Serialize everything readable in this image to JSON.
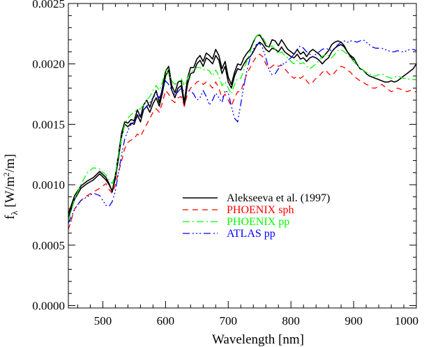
{
  "chart_data": {
    "type": "line",
    "xlabel": "Wavelength [nm]",
    "ylabel": {
      "main": "f",
      "sub": "λ",
      "unit_prefix": " [W/m",
      "unit_sup": "2",
      "unit_suffix": "/m]"
    },
    "xlim": [
      445,
      1000
    ],
    "ylim": [
      -2e-05,
      0.0025
    ],
    "xticks": [
      500,
      600,
      700,
      800,
      900,
      1000
    ],
    "yticks": [
      0.0,
      0.0005,
      0.001,
      0.0015,
      0.002,
      0.0025
    ],
    "ytick_labels": [
      "0.0000",
      "0.0005",
      "0.0010",
      "0.0015",
      "0.0020",
      "0.0025"
    ],
    "xtick_labels": [
      "500",
      "600",
      "700",
      "800",
      "900",
      "1000"
    ],
    "x_minor_step": 20,
    "y_minor_step": 0.0001,
    "grid": false,
    "legend_position": "center-right",
    "series": [
      {
        "name": "Alekseeva et al. (1997)",
        "color": "#000000",
        "dash": "solid",
        "x": [
          445,
          455,
          465,
          475,
          485,
          495,
          505,
          510,
          515,
          520,
          525,
          530,
          535,
          540,
          545,
          550,
          555,
          560,
          565,
          570,
          575,
          580,
          585,
          590,
          595,
          600,
          605,
          610,
          615,
          620,
          625,
          630,
          635,
          640,
          645,
          650,
          655,
          660,
          665,
          670,
          675,
          680,
          685,
          690,
          695,
          700,
          705,
          710,
          715,
          720,
          725,
          730,
          735,
          740,
          745,
          750,
          755,
          760,
          765,
          770,
          775,
          780,
          785,
          790,
          795,
          800,
          805,
          810,
          815,
          820,
          825,
          830,
          835,
          840,
          845,
          850,
          855,
          860,
          865,
          870,
          875,
          880,
          885,
          890,
          895,
          900,
          905,
          910,
          915,
          920,
          925,
          930,
          935,
          940,
          945,
          950,
          955,
          960,
          965,
          970,
          975,
          980,
          985,
          990,
          995,
          1000
        ],
        "y": [
          0.00073,
          0.00088,
          0.00097,
          0.00101,
          0.00104,
          0.00109,
          0.00104,
          0.001,
          0.00095,
          0.00105,
          0.00122,
          0.0014,
          0.0015,
          0.00148,
          0.00151,
          0.0015,
          0.00158,
          0.00152,
          0.00162,
          0.00165,
          0.0016,
          0.00167,
          0.00172,
          0.00165,
          0.00176,
          0.0019,
          0.00195,
          0.00178,
          0.00172,
          0.0018,
          0.00182,
          0.00165,
          0.00183,
          0.00192,
          0.00193,
          0.002,
          0.00203,
          0.00198,
          0.00205,
          0.00203,
          0.002,
          0.00207,
          0.00203,
          0.00192,
          0.00198,
          0.00185,
          0.0018,
          0.0019,
          0.00196,
          0.00195,
          0.002,
          0.00204,
          0.00206,
          0.0021,
          0.00215,
          0.00218,
          0.00216,
          0.00212,
          0.0021,
          0.00213,
          0.00212,
          0.0021,
          0.00214,
          0.0021,
          0.00208,
          0.00206,
          0.00205,
          0.00208,
          0.00204,
          0.00205,
          0.00202,
          0.00205,
          0.00206,
          0.00205,
          0.00203,
          0.002,
          0.00203,
          0.00205,
          0.0021,
          0.00213,
          0.00215,
          0.00216,
          0.00214,
          0.0021,
          0.00207,
          0.00205,
          0.002,
          0.00196,
          0.00195,
          0.00192,
          0.0019,
          0.00189,
          0.00188,
          0.00187,
          0.00186,
          0.00185,
          0.00185,
          0.00186,
          0.00185,
          0.00186,
          0.00188,
          0.0019,
          0.00192,
          0.00194,
          0.00196,
          0.002
        ]
      },
      {
        "name": "",
        "color": "#000000",
        "dash": "solid",
        "x": [
          445,
          455,
          465,
          475,
          485,
          495,
          505,
          510,
          515,
          520,
          525,
          530,
          535,
          540,
          545,
          550,
          555,
          560,
          565,
          570,
          575,
          580,
          585,
          590,
          595,
          600,
          605,
          610,
          615,
          620,
          625,
          630,
          635,
          640,
          645,
          650,
          655,
          660,
          665,
          670,
          675,
          680,
          685,
          690,
          695,
          700,
          705,
          710,
          715,
          720,
          725,
          730,
          735,
          740,
          745,
          750,
          755,
          760,
          765,
          770,
          775,
          780,
          785,
          790,
          795,
          800,
          805,
          810,
          815,
          820,
          825,
          830,
          835,
          840,
          845,
          850,
          855,
          860,
          865,
          870,
          875,
          880,
          885,
          890,
          895,
          900
        ],
        "y": [
          0.00076,
          0.00091,
          0.00099,
          0.00103,
          0.00106,
          0.00111,
          0.00106,
          0.00101,
          0.00094,
          0.00108,
          0.00125,
          0.00143,
          0.00152,
          0.00151,
          0.00154,
          0.00153,
          0.00162,
          0.00156,
          0.00166,
          0.0017,
          0.00164,
          0.00172,
          0.00178,
          0.00168,
          0.0018,
          0.00194,
          0.00198,
          0.00182,
          0.00176,
          0.00185,
          0.00186,
          0.00168,
          0.00188,
          0.00197,
          0.00197,
          0.00204,
          0.00207,
          0.00202,
          0.00209,
          0.00207,
          0.00204,
          0.00212,
          0.00207,
          0.00196,
          0.00202,
          0.00189,
          0.00183,
          0.00193,
          0.002,
          0.00199,
          0.00205,
          0.00209,
          0.00212,
          0.00218,
          0.00223,
          0.00224,
          0.0022,
          0.00215,
          0.00214,
          0.0022,
          0.00219,
          0.00215,
          0.0022,
          0.00216,
          0.00212,
          0.0021,
          0.00208,
          0.00212,
          0.00208,
          0.0021,
          0.00206,
          0.0021,
          0.00212,
          0.0021,
          0.00208,
          0.00205,
          0.00208,
          0.00211,
          0.00216,
          0.00218,
          0.00219,
          0.00218,
          0.00215,
          0.0021,
          0.00206,
          0.00203
        ]
      },
      {
        "name": "PHOENIX sph",
        "color": "#ff0000",
        "dash": "8,6",
        "x": [
          445,
          455,
          465,
          475,
          485,
          495,
          505,
          510,
          515,
          520,
          525,
          530,
          535,
          540,
          545,
          550,
          555,
          560,
          565,
          570,
          575,
          580,
          585,
          590,
          595,
          600,
          605,
          610,
          615,
          620,
          625,
          630,
          635,
          640,
          645,
          650,
          655,
          660,
          665,
          670,
          675,
          680,
          685,
          690,
          695,
          700,
          705,
          710,
          715,
          720,
          725,
          730,
          735,
          740,
          745,
          750,
          755,
          760,
          765,
          770,
          775,
          780,
          785,
          790,
          795,
          800,
          805,
          810,
          815,
          820,
          825,
          830,
          835,
          840,
          845,
          850,
          855,
          860,
          865,
          870,
          875,
          880,
          885,
          890,
          895,
          900,
          905,
          910,
          915,
          920,
          925,
          930,
          935,
          940,
          945,
          950,
          955,
          960,
          965,
          970,
          975,
          980,
          985,
          990,
          995,
          1000
        ],
        "y": [
          0.00063,
          0.0008,
          0.00087,
          0.00091,
          0.00094,
          0.00097,
          0.00101,
          0.00096,
          0.00093,
          0.001,
          0.0011,
          0.0012,
          0.0013,
          0.00135,
          0.00137,
          0.00138,
          0.00142,
          0.0014,
          0.00145,
          0.0015,
          0.00155,
          0.0016,
          0.00163,
          0.0016,
          0.00168,
          0.00178,
          0.00175,
          0.0017,
          0.00168,
          0.00172,
          0.00173,
          0.00165,
          0.00175,
          0.0018,
          0.00182,
          0.00185,
          0.00186,
          0.00183,
          0.00185,
          0.00183,
          0.0018,
          0.00185,
          0.0018,
          0.00172,
          0.00175,
          0.0017,
          0.00165,
          0.00172,
          0.00177,
          0.00177,
          0.00185,
          0.00192,
          0.00197,
          0.00202,
          0.00206,
          0.00208,
          0.00206,
          0.002,
          0.00196,
          0.00198,
          0.002,
          0.00198,
          0.00199,
          0.00196,
          0.00193,
          0.0019,
          0.00188,
          0.0019,
          0.00188,
          0.0019,
          0.00186,
          0.00183,
          0.00185,
          0.00188,
          0.0019,
          0.00193,
          0.00195,
          0.00192,
          0.0019,
          0.00193,
          0.00196,
          0.00198,
          0.00197,
          0.00195,
          0.00193,
          0.0019,
          0.00188,
          0.00186,
          0.00185,
          0.00183,
          0.00182,
          0.0018,
          0.0018,
          0.00182,
          0.00183,
          0.00181,
          0.00179,
          0.00177,
          0.00178,
          0.0018,
          0.00179,
          0.00178,
          0.00177,
          0.00178,
          0.00177,
          0.00177
        ]
      },
      {
        "name": "PHOENIX pp",
        "color": "#00ff00",
        "dash": "10,4,2,4",
        "x": [
          445,
          455,
          465,
          475,
          485,
          495,
          505,
          510,
          515,
          520,
          525,
          530,
          535,
          540,
          545,
          550,
          555,
          560,
          565,
          570,
          575,
          580,
          585,
          590,
          595,
          600,
          605,
          610,
          615,
          620,
          625,
          630,
          635,
          640,
          645,
          650,
          655,
          660,
          665,
          670,
          675,
          680,
          685,
          690,
          695,
          700,
          705,
          710,
          715,
          720,
          725,
          730,
          735,
          740,
          745,
          750,
          755,
          760,
          765,
          770,
          775,
          780,
          785,
          790,
          795,
          800,
          805,
          810,
          815,
          820,
          825,
          830,
          835,
          840,
          845,
          850,
          855,
          860,
          865,
          870,
          875,
          880,
          885,
          890,
          895,
          900,
          905,
          910,
          915,
          920,
          925,
          930,
          935,
          940,
          945,
          950,
          955,
          960,
          965,
          970,
          975,
          980,
          985,
          990,
          995,
          1000
        ],
        "y": [
          0.0007,
          0.00088,
          0.001,
          0.0011,
          0.00114,
          0.00113,
          0.00108,
          0.00104,
          0.00101,
          0.00108,
          0.00125,
          0.0014,
          0.0015,
          0.00155,
          0.00158,
          0.0016,
          0.00162,
          0.00163,
          0.00166,
          0.0017,
          0.00173,
          0.00178,
          0.00182,
          0.00178,
          0.00185,
          0.00195,
          0.00192,
          0.00186,
          0.00183,
          0.00185,
          0.00188,
          0.00182,
          0.00188,
          0.00193,
          0.00195,
          0.00197,
          0.00197,
          0.00195,
          0.00196,
          0.00194,
          0.0019,
          0.00195,
          0.0019,
          0.00182,
          0.00185,
          0.0018,
          0.00175,
          0.00183,
          0.00188,
          0.00188,
          0.00195,
          0.00203,
          0.0021,
          0.00217,
          0.00223,
          0.00225,
          0.00222,
          0.00217,
          0.00213,
          0.00215,
          0.00212,
          0.00208,
          0.0021,
          0.00207,
          0.00205,
          0.00202,
          0.002,
          0.00203,
          0.002,
          0.00201,
          0.00198,
          0.00196,
          0.00198,
          0.002,
          0.00203,
          0.00206,
          0.00208,
          0.00207,
          0.00205,
          0.00208,
          0.00211,
          0.00212,
          0.0021,
          0.00208,
          0.00205,
          0.00202,
          0.00199,
          0.00197,
          0.00195,
          0.00193,
          0.00192,
          0.0019,
          0.0019,
          0.00191,
          0.00192,
          0.0019,
          0.00189,
          0.00188,
          0.00189,
          0.0019,
          0.00189,
          0.00188,
          0.00188,
          0.00187,
          0.00187,
          0.00187
        ]
      },
      {
        "name": "ATLAS pp",
        "color": "#0000ff",
        "dash": "10,4,2,3,2,3,2,4",
        "x": [
          445,
          455,
          465,
          475,
          485,
          495,
          505,
          510,
          515,
          520,
          525,
          530,
          535,
          540,
          545,
          550,
          555,
          560,
          565,
          570,
          575,
          580,
          585,
          590,
          595,
          600,
          605,
          610,
          615,
          620,
          625,
          630,
          635,
          640,
          645,
          650,
          655,
          660,
          665,
          670,
          675,
          680,
          685,
          690,
          695,
          700,
          705,
          710,
          715,
          720,
          725,
          730,
          735,
          740,
          745,
          750,
          755,
          760,
          765,
          770,
          775,
          780,
          785,
          790,
          795,
          800,
          805,
          810,
          815,
          820,
          825,
          830,
          835,
          840,
          845,
          850,
          855,
          860,
          865,
          870,
          875,
          880,
          885,
          890,
          895,
          900,
          905,
          910,
          915,
          920,
          925,
          930,
          935,
          940,
          945,
          950,
          955,
          960,
          965,
          970,
          975,
          980,
          985,
          990,
          995,
          1000
        ],
        "y": [
          0.00068,
          0.0008,
          0.00087,
          0.0009,
          0.00093,
          0.00091,
          0.00083,
          0.00082,
          0.00086,
          0.00095,
          0.0011,
          0.00125,
          0.00138,
          0.00145,
          0.0015,
          0.00152,
          0.00156,
          0.00158,
          0.00162,
          0.00165,
          0.00168,
          0.00172,
          0.00175,
          0.00172,
          0.00178,
          0.00186,
          0.00183,
          0.00178,
          0.00174,
          0.00177,
          0.0018,
          0.00177,
          0.00178,
          0.00178,
          0.00175,
          0.0017,
          0.00172,
          0.00178,
          0.00173,
          0.00166,
          0.0017,
          0.00176,
          0.00172,
          0.00168,
          0.00178,
          0.00176,
          0.00165,
          0.00155,
          0.00152,
          0.00167,
          0.00182,
          0.00195,
          0.00205,
          0.00212,
          0.00216,
          0.00217,
          0.00213,
          0.00205,
          0.00195,
          0.00191,
          0.00192,
          0.00196,
          0.002,
          0.002,
          0.00203,
          0.00205,
          0.00208,
          0.00212,
          0.00215,
          0.00213,
          0.0021,
          0.00208,
          0.00206,
          0.00208,
          0.0021,
          0.00212,
          0.00213,
          0.00212,
          0.00211,
          0.00213,
          0.00216,
          0.00218,
          0.00219,
          0.00218,
          0.00219,
          0.00219,
          0.00218,
          0.00219,
          0.0022,
          0.00218,
          0.00216,
          0.00214,
          0.00213,
          0.00213,
          0.00213,
          0.00212,
          0.00211,
          0.0021,
          0.0021,
          0.00211,
          0.0021,
          0.0021,
          0.00211,
          0.00212,
          0.00212,
          0.00211
        ]
      }
    ]
  }
}
